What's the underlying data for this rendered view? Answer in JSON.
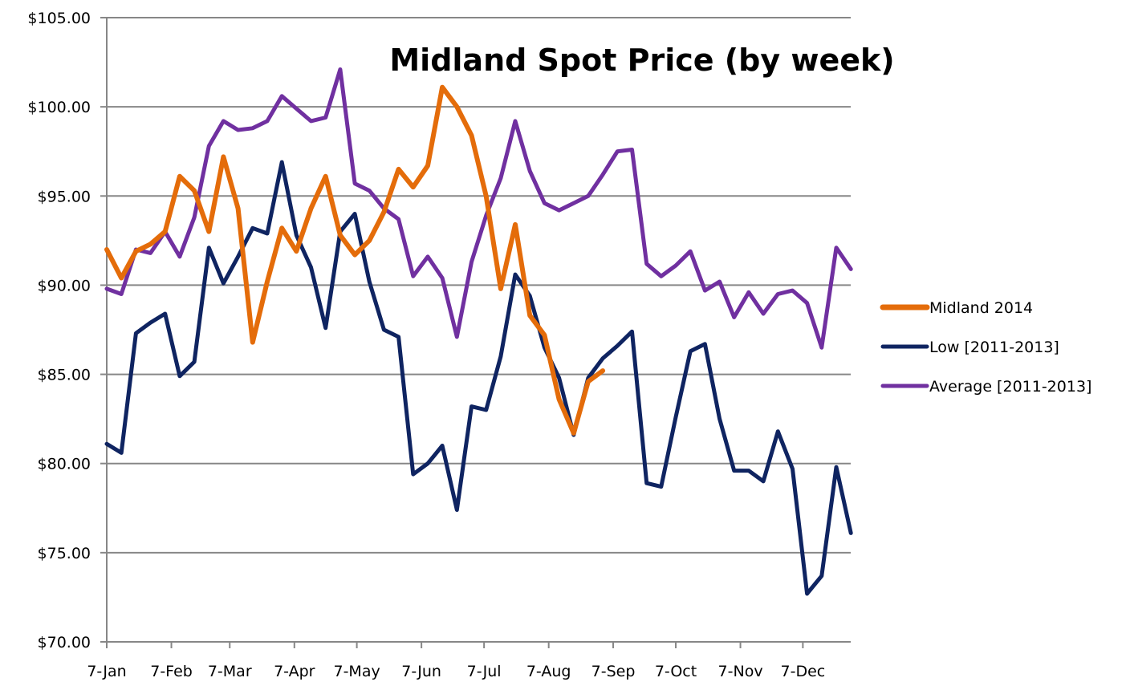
{
  "chart_data": {
    "type": "line",
    "title": "Midland Spot Price (by week)",
    "xlabel": "",
    "ylabel": "",
    "ylim": [
      70,
      105
    ],
    "y_ticks": [
      "$70.00",
      "$75.00",
      "$80.00",
      "$85.00",
      "$90.00",
      "$95.00",
      "$100.00",
      "$105.00"
    ],
    "y_tick_values": [
      70,
      75,
      80,
      85,
      90,
      95,
      100,
      105
    ],
    "x_ticks": [
      "7-Jan",
      "7-Feb",
      "7-Mar",
      "7-Apr",
      "7-May",
      "7-Jun",
      "7-Jul",
      "7-Aug",
      "7-Sep",
      "7-Oct",
      "7-Nov",
      "7-Dec"
    ],
    "x_tick_weeks": [
      0,
      4.43,
      8.43,
      12.86,
      17.14,
      21.57,
      25.86,
      30.29,
      34.71,
      39.0,
      43.43,
      47.71
    ],
    "x_unit": "week index from 7-Jan",
    "grid": true,
    "legend_position": "right",
    "series": [
      {
        "name": "Midland 2014",
        "color": "#E46C0A",
        "values": [
          92.0,
          90.4,
          91.9,
          92.3,
          93.0,
          96.1,
          95.3,
          93.0,
          97.2,
          94.3,
          86.8,
          90.2,
          93.2,
          91.9,
          94.3,
          96.1,
          92.8,
          91.7,
          92.5,
          94.1,
          96.5,
          95.5,
          96.7,
          101.1,
          100.0,
          98.4,
          95.0,
          89.8,
          93.4,
          88.3,
          87.2,
          83.6,
          81.7,
          84.6,
          85.2
        ]
      },
      {
        "name": "Low [2011-2013]",
        "color": "#0F2461",
        "values": [
          81.1,
          80.6,
          87.3,
          87.9,
          88.4,
          84.9,
          85.7,
          92.1,
          90.1,
          91.6,
          93.2,
          92.9,
          96.9,
          92.8,
          91.0,
          87.6,
          93.0,
          94.0,
          90.2,
          87.5,
          87.1,
          79.4,
          80.0,
          81.0,
          77.4,
          83.2,
          83.0,
          86.0,
          90.6,
          89.4,
          86.5,
          84.8,
          81.6,
          84.8,
          85.9,
          86.6,
          87.4,
          78.9,
          78.7,
          82.6,
          86.3,
          86.7,
          82.5,
          79.6,
          79.6,
          79.0,
          81.8,
          79.7,
          72.7,
          73.7,
          79.8,
          76.1
        ]
      },
      {
        "name": "Average [2011-2013]",
        "color": "#7030A0",
        "values": [
          89.8,
          89.5,
          92.0,
          91.8,
          93.0,
          91.6,
          93.8,
          97.8,
          99.2,
          98.7,
          98.8,
          99.2,
          100.6,
          99.9,
          99.2,
          99.4,
          102.1,
          95.7,
          95.3,
          94.3,
          93.7,
          90.5,
          91.6,
          90.4,
          87.1,
          91.3,
          93.9,
          96.0,
          99.2,
          96.4,
          94.6,
          94.2,
          94.6,
          95.0,
          96.2,
          97.5,
          97.6,
          91.2,
          90.5,
          91.1,
          91.9,
          89.7,
          90.2,
          88.2,
          89.6,
          88.4,
          89.5,
          89.7,
          89.0,
          86.5,
          92.1,
          90.9
        ]
      }
    ]
  }
}
